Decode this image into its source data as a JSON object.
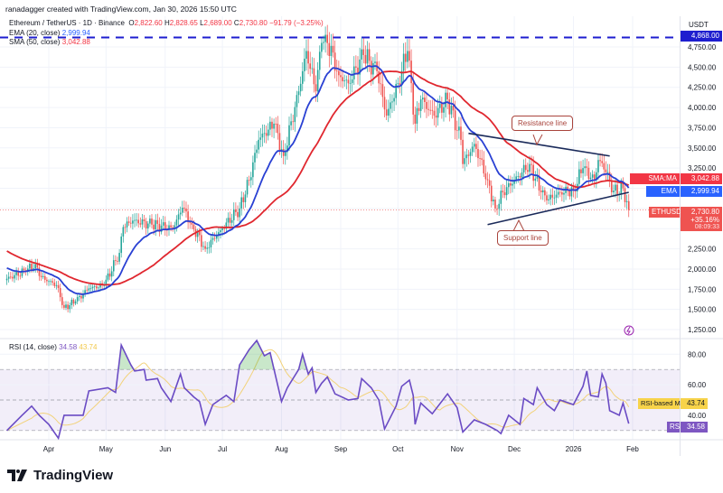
{
  "header": {
    "attribution": "ranadagger created with TradingView.com, Jan 30, 2026 15:50 UTC",
    "symbol": "Ethereum / TetherUS · 1D · Binance",
    "open": "2,822.60",
    "high": "2,828.65",
    "low": "2,689.00",
    "close": "2,730.80",
    "change": "−91.79 (−3.25%)",
    "ema_label": "EMA (20, close)",
    "ema_value": "2,999.94",
    "sma_label": "SMA (50, close)",
    "sma_value": "3,042.88"
  },
  "axis": {
    "currency": "USDT",
    "price_ticks": [
      "4,750.00",
      "4,500.00",
      "4,250.00",
      "4,000.00",
      "3,750.00",
      "3,500.00",
      "3,250.00",
      "2,250.00",
      "2,000.00",
      "1,750.00",
      "1,500.00",
      "1,250.00"
    ],
    "rsi_ticks": [
      "80.00",
      "60.00",
      "40.00"
    ],
    "time_ticks": [
      "Apr",
      "May",
      "Jun",
      "Jul",
      "Aug",
      "Sep",
      "Oct",
      "Nov",
      "Dec",
      "2026",
      "Feb"
    ]
  },
  "tags": {
    "level": "4,868.00",
    "sma_name": "SMA:MA",
    "sma_value": "3,042.88",
    "ema_name": "EMA",
    "ema_value": "2,999.94",
    "symbol_name": "ETHUSDT",
    "last_price": "2,730.80",
    "last_change": "+35.16%",
    "countdown": "08:09:33",
    "rsi_ma_name": "RSI-based MA",
    "rsi_ma_value": "43.74",
    "rsi_name": "RSI",
    "rsi_value": "34.58"
  },
  "rsi_legend": {
    "label": "RSI (14, close)",
    "rsi": "34.58",
    "ma": "43.74"
  },
  "annotations": {
    "resistance": "Resistance line",
    "support": "Support line"
  },
  "footer": {
    "brand": "TradingView"
  },
  "colors": {
    "up": "#26a69a",
    "down": "#ef5350",
    "ema": "#2940d3",
    "sma": "#e0272f",
    "rsi": "#6a4bc4",
    "rsi_ma": "#f2d27a",
    "level": "#1e1ecf",
    "trendline": "#1a2a5a"
  },
  "chart_data": [
    {
      "type": "candlestick",
      "title": "Ethereum / TetherUS · 1D · Binance",
      "ylabel": "USDT",
      "ylim": [
        1150,
        4950
      ],
      "grid": true,
      "closes": [
        [
          "2025-03-10",
          1880
        ],
        [
          "2025-03-20",
          1980
        ],
        [
          "2025-03-25",
          2060
        ],
        [
          "2025-03-28",
          1900
        ],
        [
          "2025-04-05",
          1800
        ],
        [
          "2025-04-09",
          1520
        ],
        [
          "2025-04-15",
          1600
        ],
        [
          "2025-04-22",
          1760
        ],
        [
          "2025-04-30",
          1800
        ],
        [
          "2025-05-08",
          2200
        ],
        [
          "2025-05-10",
          2520
        ],
        [
          "2025-05-15",
          2600
        ],
        [
          "2025-05-25",
          2550
        ],
        [
          "2025-06-05",
          2500
        ],
        [
          "2025-06-10",
          2760
        ],
        [
          "2025-06-15",
          2550
        ],
        [
          "2025-06-22",
          2250
        ],
        [
          "2025-06-30",
          2480
        ],
        [
          "2025-07-10",
          2750
        ],
        [
          "2025-07-15",
          3100
        ],
        [
          "2025-07-20",
          3600
        ],
        [
          "2025-07-28",
          3800
        ],
        [
          "2025-08-02",
          3400
        ],
        [
          "2025-08-10",
          4200
        ],
        [
          "2025-08-14",
          4700
        ],
        [
          "2025-08-19",
          4200
        ],
        [
          "2025-08-22",
          4800
        ],
        [
          "2025-08-24",
          4900
        ],
        [
          "2025-08-31",
          4400
        ],
        [
          "2025-09-05",
          4300
        ],
        [
          "2025-09-13",
          4650
        ],
        [
          "2025-09-20",
          4450
        ],
        [
          "2025-09-25",
          3900
        ],
        [
          "2025-10-01",
          4300
        ],
        [
          "2025-10-06",
          4700
        ],
        [
          "2025-10-10",
          3800
        ],
        [
          "2025-10-13",
          4100
        ],
        [
          "2025-10-20",
          3900
        ],
        [
          "2025-10-27",
          4100
        ],
        [
          "2025-11-03",
          3600
        ],
        [
          "2025-11-04",
          3300
        ],
        [
          "2025-11-10",
          3550
        ],
        [
          "2025-11-17",
          3100
        ],
        [
          "2025-11-21",
          2750
        ],
        [
          "2025-11-25",
          2950
        ],
        [
          "2025-12-03",
          3150
        ],
        [
          "2025-12-09",
          3300
        ],
        [
          "2025-12-15",
          2950
        ],
        [
          "2025-12-18",
          2850
        ],
        [
          "2025-12-25",
          2950
        ],
        [
          "2026-01-01",
          2980
        ],
        [
          "2026-01-06",
          3250
        ],
        [
          "2026-01-12",
          3100
        ],
        [
          "2026-01-14",
          3350
        ],
        [
          "2026-01-19",
          3200
        ],
        [
          "2026-01-21",
          2950
        ],
        [
          "2026-01-27",
          3000
        ],
        [
          "2026-01-30",
          2730.8
        ]
      ],
      "indicators": [
        {
          "name": "EMA (20, close)",
          "last": 2999.94
        },
        {
          "name": "SMA (50, close)",
          "last": 3042.88
        }
      ],
      "horizontal_level": 4868,
      "trendlines": [
        {
          "name": "Resistance line",
          "from": [
            "2025-11-07",
            3680
          ],
          "to": [
            "2026-01-20",
            3400
          ]
        },
        {
          "name": "Support line",
          "from": [
            "2025-11-17",
            2550
          ],
          "to": [
            "2026-01-30",
            2950
          ]
        }
      ]
    },
    {
      "type": "line",
      "title": "RSI (14, close)",
      "ylim": [
        20,
        95
      ],
      "bands": [
        30,
        50,
        70
      ],
      "series": [
        {
          "name": "RSI",
          "values": [
            [
              "2025-03-10",
              30
            ],
            [
              "2025-03-18",
              40
            ],
            [
              "2025-03-23",
              46
            ],
            [
              "2025-03-27",
              40
            ],
            [
              "2025-04-01",
              34
            ],
            [
              "2025-04-06",
              25
            ],
            [
              "2025-04-09",
              40
            ],
            [
              "2025-04-19",
              40
            ],
            [
              "2025-04-22",
              56
            ],
            [
              "2025-05-02",
              58
            ],
            [
              "2025-05-06",
              55
            ],
            [
              "2025-05-09",
              86
            ],
            [
              "2025-05-14",
              73
            ],
            [
              "2025-05-16",
              69
            ],
            [
              "2025-05-21",
              70
            ],
            [
              "2025-05-22",
              63
            ],
            [
              "2025-05-28",
              64
            ],
            [
              "2025-05-30",
              58
            ],
            [
              "2025-06-04",
              49
            ],
            [
              "2025-06-09",
              67
            ],
            [
              "2025-06-11",
              58
            ],
            [
              "2025-06-16",
              52
            ],
            [
              "2025-06-19",
              49
            ],
            [
              "2025-06-22",
              34
            ],
            [
              "2025-06-26",
              47
            ],
            [
              "2025-07-03",
              53
            ],
            [
              "2025-07-07",
              49
            ],
            [
              "2025-07-10",
              73
            ],
            [
              "2025-07-15",
              83
            ],
            [
              "2025-07-19",
              89
            ],
            [
              "2025-07-23",
              79
            ],
            [
              "2025-07-26",
              81
            ],
            [
              "2025-08-01",
              49
            ],
            [
              "2025-08-04",
              58
            ],
            [
              "2025-08-10",
              70
            ],
            [
              "2025-08-12",
              80
            ],
            [
              "2025-08-15",
              67
            ],
            [
              "2025-08-17",
              71
            ],
            [
              "2025-08-19",
              55
            ],
            [
              "2025-08-22",
              61
            ],
            [
              "2025-08-25",
              65
            ],
            [
              "2025-08-29",
              54
            ],
            [
              "2025-09-05",
              50
            ],
            [
              "2025-09-10",
              51
            ],
            [
              "2025-09-12",
              64
            ],
            [
              "2025-09-17",
              58
            ],
            [
              "2025-09-21",
              50
            ],
            [
              "2025-09-24",
              31
            ],
            [
              "2025-09-30",
              46
            ],
            [
              "2025-10-03",
              59
            ],
            [
              "2025-10-07",
              63
            ],
            [
              "2025-10-09",
              53
            ],
            [
              "2025-10-10",
              34
            ],
            [
              "2025-10-13",
              48
            ],
            [
              "2025-10-19",
              41
            ],
            [
              "2025-10-27",
              54
            ],
            [
              "2025-11-01",
              45
            ],
            [
              "2025-11-04",
              29
            ],
            [
              "2025-11-10",
              37
            ],
            [
              "2025-11-16",
              34
            ],
            [
              "2025-11-22",
              30
            ],
            [
              "2025-11-24",
              28
            ],
            [
              "2025-11-28",
              40
            ],
            [
              "2025-12-04",
              34
            ],
            [
              "2025-12-06",
              51
            ],
            [
              "2025-12-11",
              47
            ],
            [
              "2025-12-13",
              58
            ],
            [
              "2025-12-18",
              47
            ],
            [
              "2025-12-22",
              43
            ],
            [
              "2025-12-25",
              50
            ],
            [
              "2026-01-01",
              47
            ],
            [
              "2026-01-06",
              59
            ],
            [
              "2026-01-08",
              69
            ],
            [
              "2026-01-10",
              53
            ],
            [
              "2026-01-14",
              52
            ],
            [
              "2026-01-16",
              67
            ],
            [
              "2026-01-18",
              61
            ],
            [
              "2026-01-20",
              43
            ],
            [
              "2026-01-25",
              40
            ],
            [
              "2026-01-27",
              48
            ],
            [
              "2026-01-30",
              34.58
            ]
          ]
        },
        {
          "name": "RSI-based MA",
          "last": 43.74
        }
      ]
    }
  ]
}
